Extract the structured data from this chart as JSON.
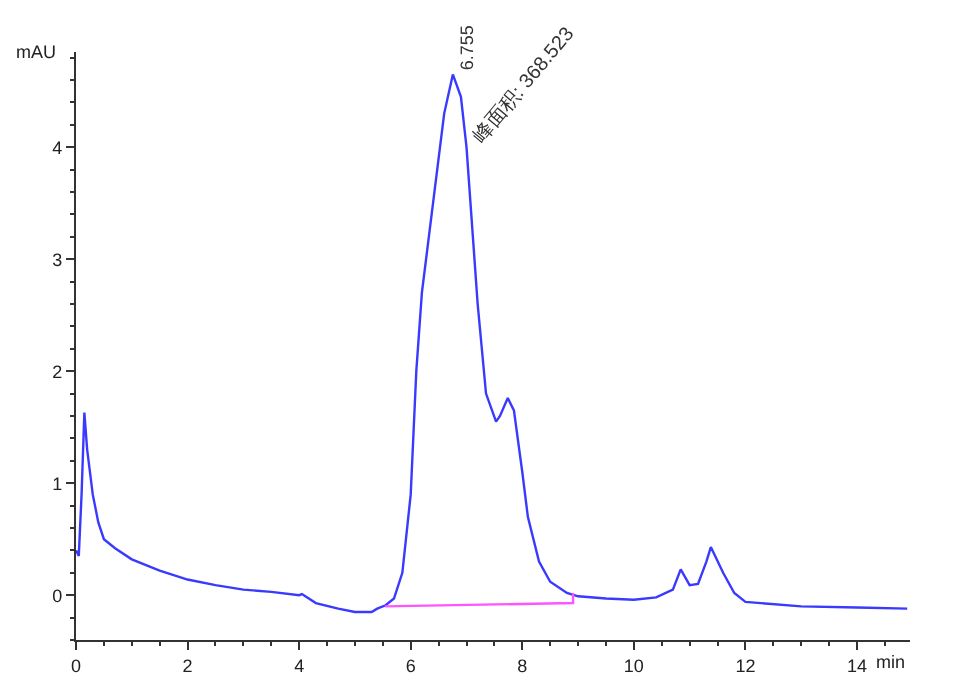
{
  "chart_data": {
    "type": "line",
    "xlabel": "min",
    "ylabel": "mAU",
    "xlim": [
      0,
      14.95
    ],
    "xticks": [
      0,
      2,
      4,
      6,
      8,
      10,
      12,
      14
    ],
    "ylim": [
      -0.4,
      4.85
    ],
    "yticks": [
      0,
      1,
      2,
      3,
      4
    ],
    "series": [
      {
        "color": "#3a3aff",
        "x": [
          0,
          0.05,
          0.1,
          0.15,
          0.2,
          0.3,
          0.4,
          0.5,
          0.7,
          1,
          1.5,
          2,
          2.5,
          3,
          3.5,
          4,
          4.05,
          4.3,
          4.7,
          5.0,
          5.3,
          5.4,
          5.55,
          5.7,
          5.85,
          6.0,
          6.1,
          6.2,
          6.4,
          6.6,
          6.755,
          6.9,
          7.0,
          7.1,
          7.2,
          7.35,
          7.53,
          7.6,
          7.74,
          7.85,
          8.0,
          8.1,
          8.3,
          8.5,
          8.8,
          9.0,
          9.5,
          10,
          10.4,
          10.7,
          10.84,
          11.0,
          11.15,
          11.3,
          11.38,
          11.6,
          11.8,
          12.0,
          13,
          14,
          14.9
        ],
        "values": [
          0.4,
          0.35,
          0.9,
          1.63,
          1.3,
          0.9,
          0.65,
          0.5,
          0.42,
          0.32,
          0.22,
          0.14,
          0.09,
          0.05,
          0.03,
          0.0,
          0.01,
          -0.07,
          -0.12,
          -0.15,
          -0.15,
          -0.12,
          -0.09,
          -0.03,
          0.2,
          0.9,
          2.0,
          2.7,
          3.5,
          4.3,
          4.65,
          4.45,
          4.0,
          3.3,
          2.6,
          1.8,
          1.55,
          1.6,
          1.76,
          1.65,
          1.1,
          0.7,
          0.3,
          0.12,
          0.02,
          -0.01,
          -0.03,
          -0.04,
          -0.02,
          0.05,
          0.23,
          0.09,
          0.1,
          0.3,
          0.43,
          0.2,
          0.02,
          -0.06,
          -0.1,
          -0.11,
          -0.12
        ]
      },
      {
        "color": "#ff55ff",
        "x": [
          5.54,
          8.91,
          8.91
        ],
        "values": [
          -0.1,
          -0.07,
          0.02
        ]
      }
    ],
    "annotations": [
      {
        "text": "6.755",
        "x": 6.755,
        "y": 4.65
      },
      {
        "text": "峰面积: 368.523",
        "x": 6.95,
        "y": 3.95
      }
    ]
  }
}
